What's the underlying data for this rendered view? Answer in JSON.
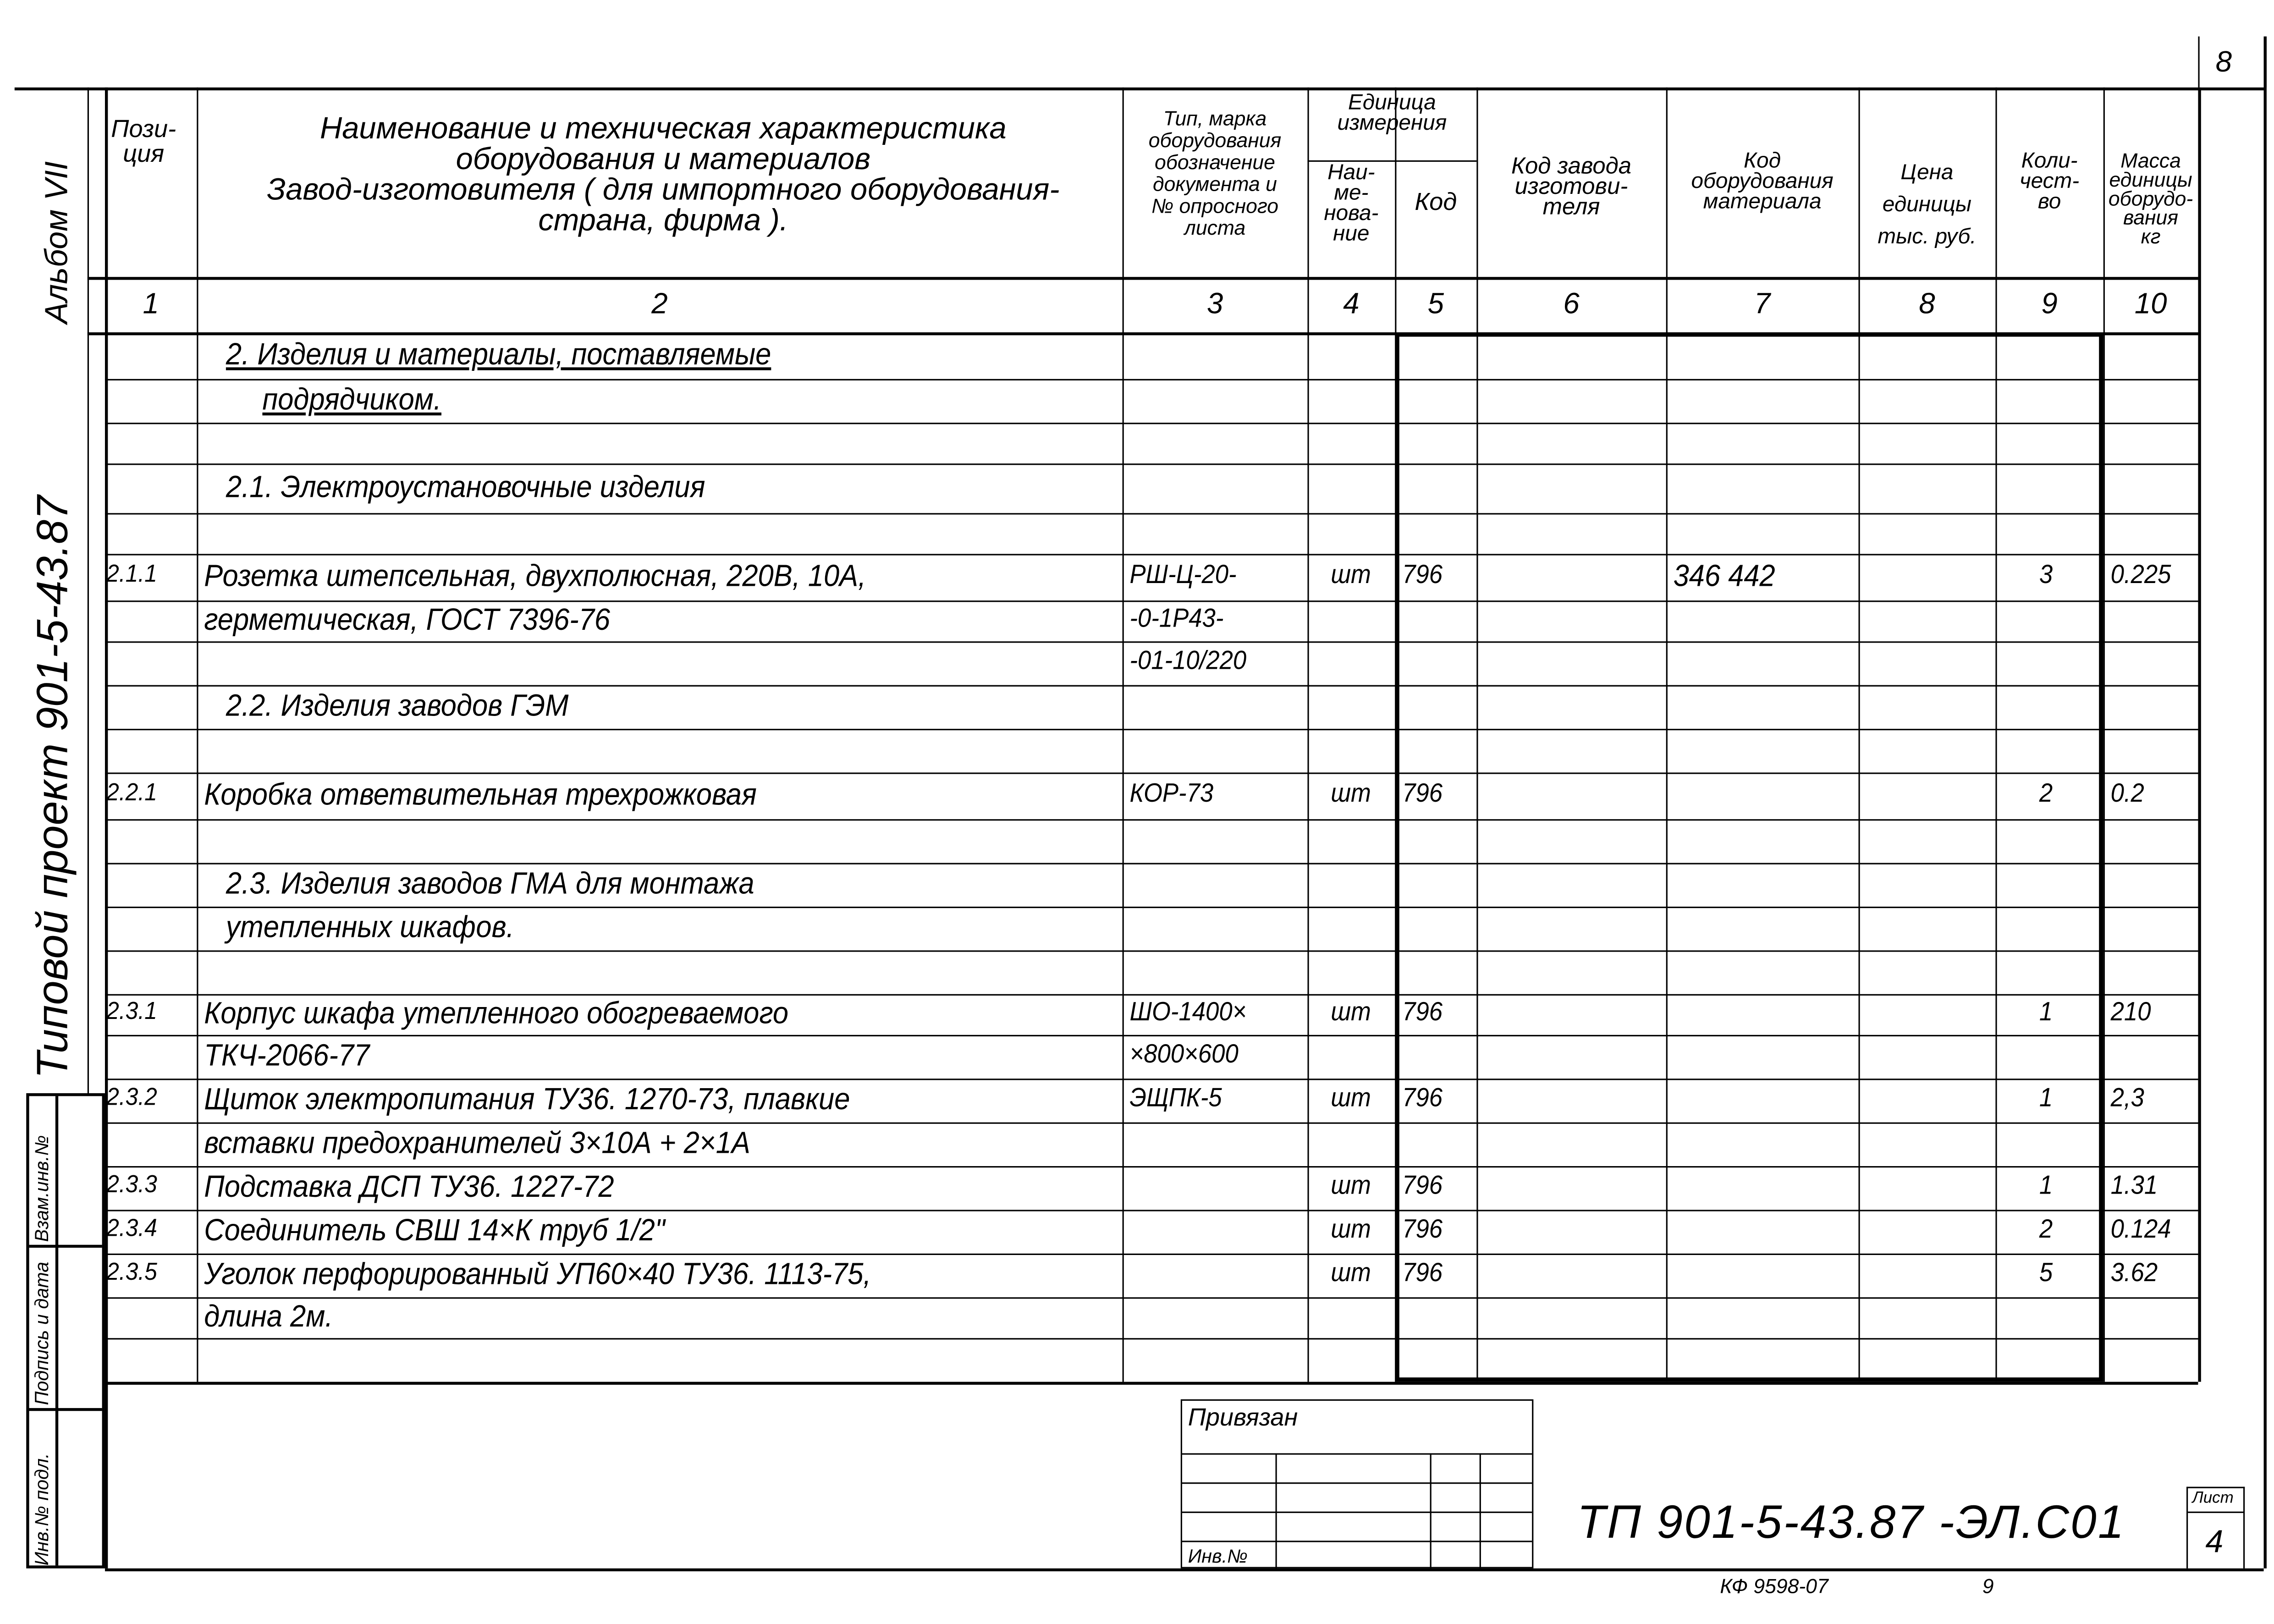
{
  "sheet_number": "8",
  "margin": {
    "album": "Альбом VII",
    "project": "Типовой проект 901-5-43.87",
    "stamp": [
      "Взам.инв.№",
      "Подпись и дата",
      "Инв.№ подл."
    ]
  },
  "header": {
    "col1": "Пози-\nция",
    "col2": "Наименование и техническая характеристика\nоборудования и материалов\nЗавод-изготовителя ( для импортного оборудования-\nстрана, фирма ).",
    "col3": "Тип, марка\nоборудования\nобозначение\nдокумента и\n№ опросного\nлиста",
    "unit_group": "Единица\nизмерения",
    "col4": "Наи-\nме-\nнова-\nние",
    "col5": "Код",
    "col6": "Код завода\nизготови-\nтеля",
    "col7": "Код\nоборудования\nматериала",
    "col8": "Цена\nединицы\nтыс. руб.",
    "col9": "Коли-\nчест-\nво",
    "col10": "Масса\nединицы\nоборудо-\nвания\nкг",
    "numbers": [
      "1",
      "2",
      "3",
      "4",
      "5",
      "6",
      "7",
      "8",
      "9",
      "10"
    ]
  },
  "rows": [
    [
      "",
      "2. Изделия и материалы, поставляемые",
      "",
      "",
      "",
      "",
      "",
      "",
      "",
      ""
    ],
    [
      "",
      "подрядчиком.",
      "",
      "",
      "",
      "",
      "",
      "",
      "",
      ""
    ],
    [
      "",
      "",
      "",
      "",
      "",
      "",
      "",
      "",
      "",
      ""
    ],
    [
      "",
      "2.1. Электроустановочные изделия",
      "",
      "",
      "",
      "",
      "",
      "",
      "",
      ""
    ],
    [
      "",
      "",
      "",
      "",
      "",
      "",
      "",
      "",
      "",
      ""
    ],
    [
      "2.1.1",
      "Розетка штепсельная, двухполюсная, 220В, 10А,",
      "РШ-Ц-20-",
      "шт",
      "796",
      "",
      "346 442",
      "",
      "3",
      "0.225"
    ],
    [
      "",
      "герметическая, ГОСТ 7396-76",
      "-0-1Р43-",
      "",
      "",
      "",
      "",
      "",
      "",
      ""
    ],
    [
      "",
      "",
      "-01-10/220",
      "",
      "",
      "",
      "",
      "",
      "",
      ""
    ],
    [
      "",
      "2.2. Изделия заводов ГЭМ",
      "",
      "",
      "",
      "",
      "",
      "",
      "",
      ""
    ],
    [
      "",
      "",
      "",
      "",
      "",
      "",
      "",
      "",
      "",
      ""
    ],
    [
      "2.2.1",
      "Коробка ответвительная трехрожковая",
      "КОР-73",
      "шт",
      "796",
      "",
      "",
      "",
      "2",
      "0.2"
    ],
    [
      "",
      "",
      "",
      "",
      "",
      "",
      "",
      "",
      "",
      ""
    ],
    [
      "",
      "2.3. Изделия заводов ГМА для монтажа",
      "",
      "",
      "",
      "",
      "",
      "",
      "",
      ""
    ],
    [
      "",
      "      утепленных шкафов.",
      "",
      "",
      "",
      "",
      "",
      "",
      "",
      ""
    ],
    [
      "",
      "",
      "",
      "",
      "",
      "",
      "",
      "",
      "",
      ""
    ],
    [
      "2.3.1",
      "Корпус шкафа утепленного обогреваемого",
      "ШО-1400×",
      "шт",
      "796",
      "",
      "",
      "",
      "1",
      "210"
    ],
    [
      "",
      "ТКЧ-2066-77",
      "×800×600",
      "",
      "",
      "",
      "",
      "",
      "",
      ""
    ],
    [
      "2.3.2",
      "Щиток электропитания ТУ36. 1270-73, плавкие",
      "ЭЩПК-5",
      "шт",
      "796",
      "",
      "",
      "",
      "1",
      "2,3"
    ],
    [
      "",
      "вставки предохранителей 3×10А + 2×1А",
      "",
      "",
      "",
      "",
      "",
      "",
      "",
      ""
    ],
    [
      "2.3.3",
      "Подставка ДСП ТУ36. 1227-72",
      "",
      "шт",
      "796",
      "",
      "",
      "",
      "1",
      "1.31"
    ],
    [
      "2.3.4",
      "Соединитель СВШ 14×К труб 1/2\"",
      "",
      "шт",
      "796",
      "",
      "",
      "",
      "2",
      "0.124"
    ],
    [
      "2.3.5",
      "Уголок перфорированный УП60×40 ТУ36. 1113-75,",
      "",
      "шт",
      "796",
      "",
      "",
      "",
      "5",
      "3.62"
    ],
    [
      "",
      "длина 2м.",
      "",
      "",
      "",
      "",
      "",
      "",
      "",
      ""
    ],
    [
      "",
      "",
      "",
      "",
      "",
      "",
      "",
      "",
      "",
      ""
    ]
  ],
  "title_block": {
    "bound_label": "Привязан",
    "inv_label": "Инв.№",
    "doc_code": "ТП 901-5-43.87 -ЭЛ.С01",
    "sheet_label": "Лист",
    "sheet_value": "4"
  },
  "footer": {
    "stamp_code": "КФ 9598-07",
    "page": "9"
  }
}
